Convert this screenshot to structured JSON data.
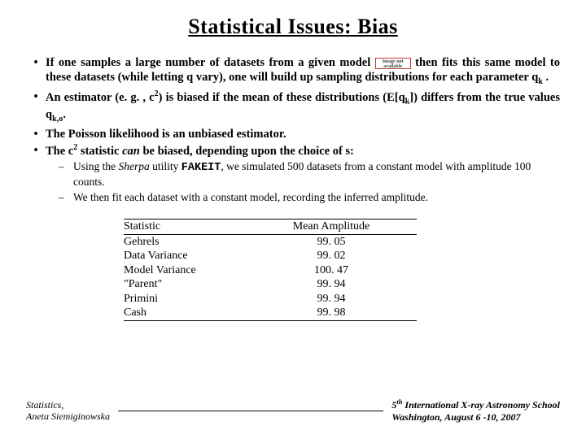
{
  "title": "Statistical Issues: Bias",
  "bullets": [
    {
      "pre": "If one samples a large number of datasets from a given model ",
      "post": " then fits this same model to these datasets (while letting q  vary), one will build up sampling distributions for each parameter q",
      "subK": "k",
      "tail": " .",
      "hasImg": true
    },
    {
      "text": "An estimator (e. g. , c",
      "sup": "2",
      "mid": ") is biased if the mean of these distributions (E[q",
      "subK": "k",
      "mid2": "]) differs from the true values q",
      "subKO": "k,o",
      "tail": "."
    },
    {
      "text": "The Poisson likelihood is an unbiased estimator."
    },
    {
      "text": "The c",
      "sup": "2",
      "mid": " statistic ",
      "can": "can",
      "mid2": " be biased, depending upon the choice of s:"
    }
  ],
  "subbullets": [
    {
      "pre": "Using the ",
      "sherpa": "Sherpa",
      "mid": " utility ",
      "fakeit": "FAKEIT",
      "post": ", we simulated 500 datasets from a constant model with amplitude 100 counts."
    },
    {
      "text": "We then fit each dataset with a constant model, recording the inferred amplitude."
    }
  ],
  "table": {
    "headers": [
      "Statistic",
      "Mean Amplitude"
    ],
    "rows": [
      [
        "Gehrels",
        "99. 05"
      ],
      [
        "Data Variance",
        "99. 02"
      ],
      [
        "Model Variance",
        "100. 47"
      ],
      [
        "\"Parent\"",
        "99. 94"
      ],
      [
        "Primini",
        "99. 94"
      ],
      [
        "Cash",
        "99. 98"
      ]
    ]
  },
  "footer": {
    "leftLine1": "Statistics,",
    "leftLine2": "Aneta Siemiginowska",
    "rightLine1a": "5",
    "rightLine1b": " International X-ray Astronomy School",
    "rightLine2": "Washington, August 6 -10, 2007"
  },
  "missingImgText": "Image not available"
}
